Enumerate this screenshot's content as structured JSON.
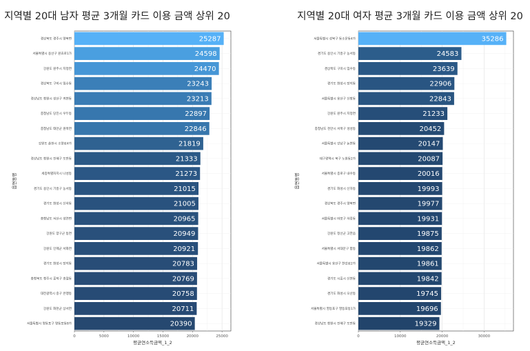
{
  "chart_data": [
    {
      "type": "bar",
      "orientation": "horizontal",
      "title": "지역별 20대 남자 평균 3개월 카드 이용 금액 상위 20",
      "xlabel": "평균연소득금액_1_2",
      "ylabel": "읍면동명",
      "xlim": [
        0,
        26500
      ],
      "xticks": [
        0,
        5000,
        10000,
        15000,
        20000,
        25000
      ],
      "grid": true,
      "legend": "none",
      "categories": [
        "경상북도 경주시 양북면",
        "서울특별시 용산구 원효로1가",
        "강원도 원주시 지정면",
        "경상북도 구미시 임수동",
        "경상남도 창원시 성산구 귀현동",
        "충청남도 당진시 우두동",
        "충청남도 태안군 원북면",
        "강원도 춘천시 소양로4가",
        "경상남도 창원시 진해구 도만동",
        "세종특별자치시 나성동",
        "경기도 용인시 기흥구 농서동",
        "경기도 화성시 신하동",
        "충청남도 서산시 성연면",
        "강원도 양구군 동면",
        "강원도 인제군 서화면",
        "경기도 화성시 장지동",
        "충청북도 청주시 흥덕구 송절동",
        "대전광역시 중구 은행동",
        "강원도 화천군 상서면",
        "서울특별시 영등포구 영등포동8가"
      ],
      "values": [
        25287,
        24598,
        24470,
        23243,
        23213,
        22897,
        22846,
        21819,
        21333,
        21273,
        21015,
        21005,
        20965,
        20949,
        20921,
        20783,
        20769,
        20758,
        20711,
        20390
      ],
      "colors": [
        "#56b1f7",
        "#4a9fe0",
        "#4696d6",
        "#3b7fb8",
        "#3a7cb4",
        "#3777ae",
        "#3776ac",
        "#2f6291",
        "#2b5986",
        "#2b5785",
        "#2a5480",
        "#29527e",
        "#29517c",
        "#29507b",
        "#284f7a",
        "#284d77",
        "#284c76",
        "#274b75",
        "#274a74",
        "#264870"
      ]
    },
    {
      "type": "bar",
      "orientation": "horizontal",
      "title": "지역별 20대 여자 평균 3개월 카드 이용 금액 상위 20",
      "xlabel": "평균연소득금액_1_2",
      "ylabel": "읍면동명",
      "xlim": [
        0,
        37000
      ],
      "xticks": [
        0,
        10000,
        20000,
        30000
      ],
      "grid": true,
      "legend": "none",
      "categories": [
        "서울특별시 성북구 동소문동4가",
        "경기도 용인시 기흥구 농서동",
        "경상북도 구미시 임수동",
        "경기도 화성시 장지동",
        "서울특별시 용산구 신창동",
        "강원도 원주시 지정면",
        "충청남도 천안시 서북구 성성동",
        "서울특별시 강남구 논현동",
        "대구광역시 북구 노원동2가",
        "서울특별시 종로구 내수동",
        "경기도 화성시 신하동",
        "경상북도 경주시 양북면",
        "서울특별시 마포구 하중동",
        "강원도 정선군 고한읍",
        "서울특별시 서대문구 합동",
        "서울특별시 용산구 한강로2가",
        "경기도 시흥시 신현동",
        "경기도 화성시 오산동",
        "서울특별시 영등포구 영등포동1가",
        "경상남도 창원시 진해구 도만동"
      ],
      "values": [
        35286,
        24583,
        23639,
        22906,
        22843,
        21233,
        20452,
        20147,
        20087,
        20016,
        19993,
        19977,
        19931,
        19875,
        19862,
        19861,
        19842,
        19745,
        19696,
        19329
      ],
      "colors": [
        "#56b1f7",
        "#2c5d8b",
        "#2a5886",
        "#295582",
        "#295581",
        "#264e79",
        "#254b74",
        "#244972",
        "#244971",
        "#244871",
        "#244870",
        "#244870",
        "#234770",
        "#234770",
        "#234770",
        "#23476f",
        "#23476f",
        "#23466e",
        "#23466e",
        "#22446b"
      ]
    }
  ]
}
